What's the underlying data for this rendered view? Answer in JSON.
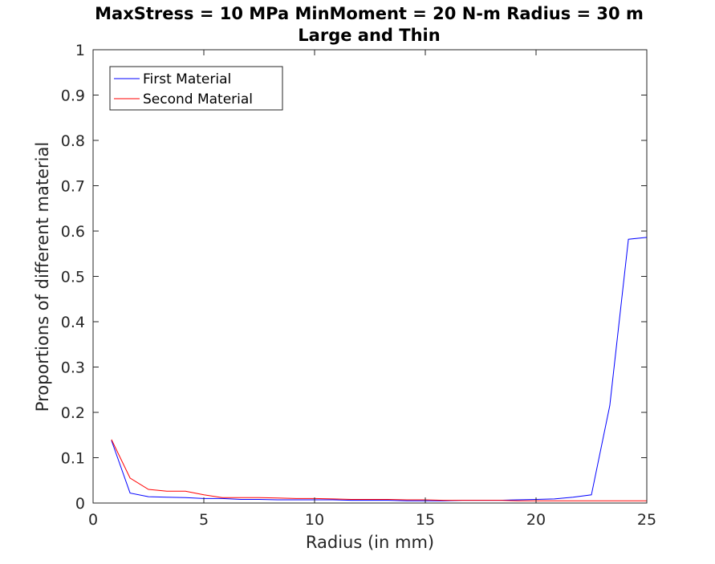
{
  "chart_data": {
    "type": "line",
    "title_line1": "MaxStress = 10 MPa MinMoment = 20 N-m Radius = 30 m",
    "title_line2": "Large and Thin",
    "xlabel": "Radius (in mm)",
    "ylabel": "Proportions of different material",
    "xlim": [
      0,
      25
    ],
    "ylim": [
      0,
      1
    ],
    "xticks": [
      0,
      5,
      10,
      15,
      20,
      25
    ],
    "yticks": [
      0,
      0.1,
      0.2,
      0.3,
      0.4,
      0.5,
      0.6,
      0.7,
      0.8,
      0.9,
      1
    ],
    "xtick_labels": [
      "0",
      "5",
      "10",
      "15",
      "20",
      "25"
    ],
    "ytick_labels": [
      "0",
      "0.1",
      "0.2",
      "0.3",
      "0.4",
      "0.5",
      "0.6",
      "0.7",
      "0.8",
      "0.9",
      "1"
    ],
    "grid": false,
    "legend_position": "top-left",
    "series": [
      {
        "name": "First Material",
        "color": "#0000ff",
        "x": [
          0.83,
          1.67,
          2.5,
          3.33,
          4.17,
          5.0,
          5.83,
          6.67,
          7.5,
          8.33,
          9.17,
          10.0,
          10.83,
          11.67,
          12.5,
          13.33,
          14.17,
          15.0,
          15.83,
          16.67,
          17.5,
          18.33,
          19.17,
          20.0,
          20.83,
          21.67,
          22.5,
          23.33,
          24.17,
          25.0
        ],
        "y": [
          0.138,
          0.022,
          0.014,
          0.013,
          0.012,
          0.01,
          0.01,
          0.008,
          0.008,
          0.007,
          0.007,
          0.007,
          0.007,
          0.006,
          0.006,
          0.006,
          0.005,
          0.005,
          0.005,
          0.006,
          0.006,
          0.006,
          0.007,
          0.008,
          0.009,
          0.013,
          0.018,
          0.215,
          0.582,
          0.586
        ]
      },
      {
        "name": "Second Material",
        "color": "#ff0000",
        "x": [
          0.83,
          1.67,
          2.5,
          3.33,
          4.17,
          5.0,
          5.83,
          6.67,
          7.5,
          8.33,
          9.17,
          10.0,
          10.83,
          11.67,
          12.5,
          13.33,
          14.17,
          15.0,
          15.83,
          16.67,
          17.5,
          18.33,
          19.17,
          20.0,
          20.83,
          21.67,
          22.5,
          23.33,
          24.17,
          25.0
        ],
        "y": [
          0.14,
          0.055,
          0.03,
          0.026,
          0.026,
          0.018,
          0.012,
          0.012,
          0.012,
          0.011,
          0.01,
          0.01,
          0.009,
          0.008,
          0.008,
          0.008,
          0.007,
          0.007,
          0.006,
          0.006,
          0.006,
          0.006,
          0.005,
          0.005,
          0.005,
          0.005,
          0.005,
          0.005,
          0.005,
          0.005
        ]
      }
    ]
  }
}
